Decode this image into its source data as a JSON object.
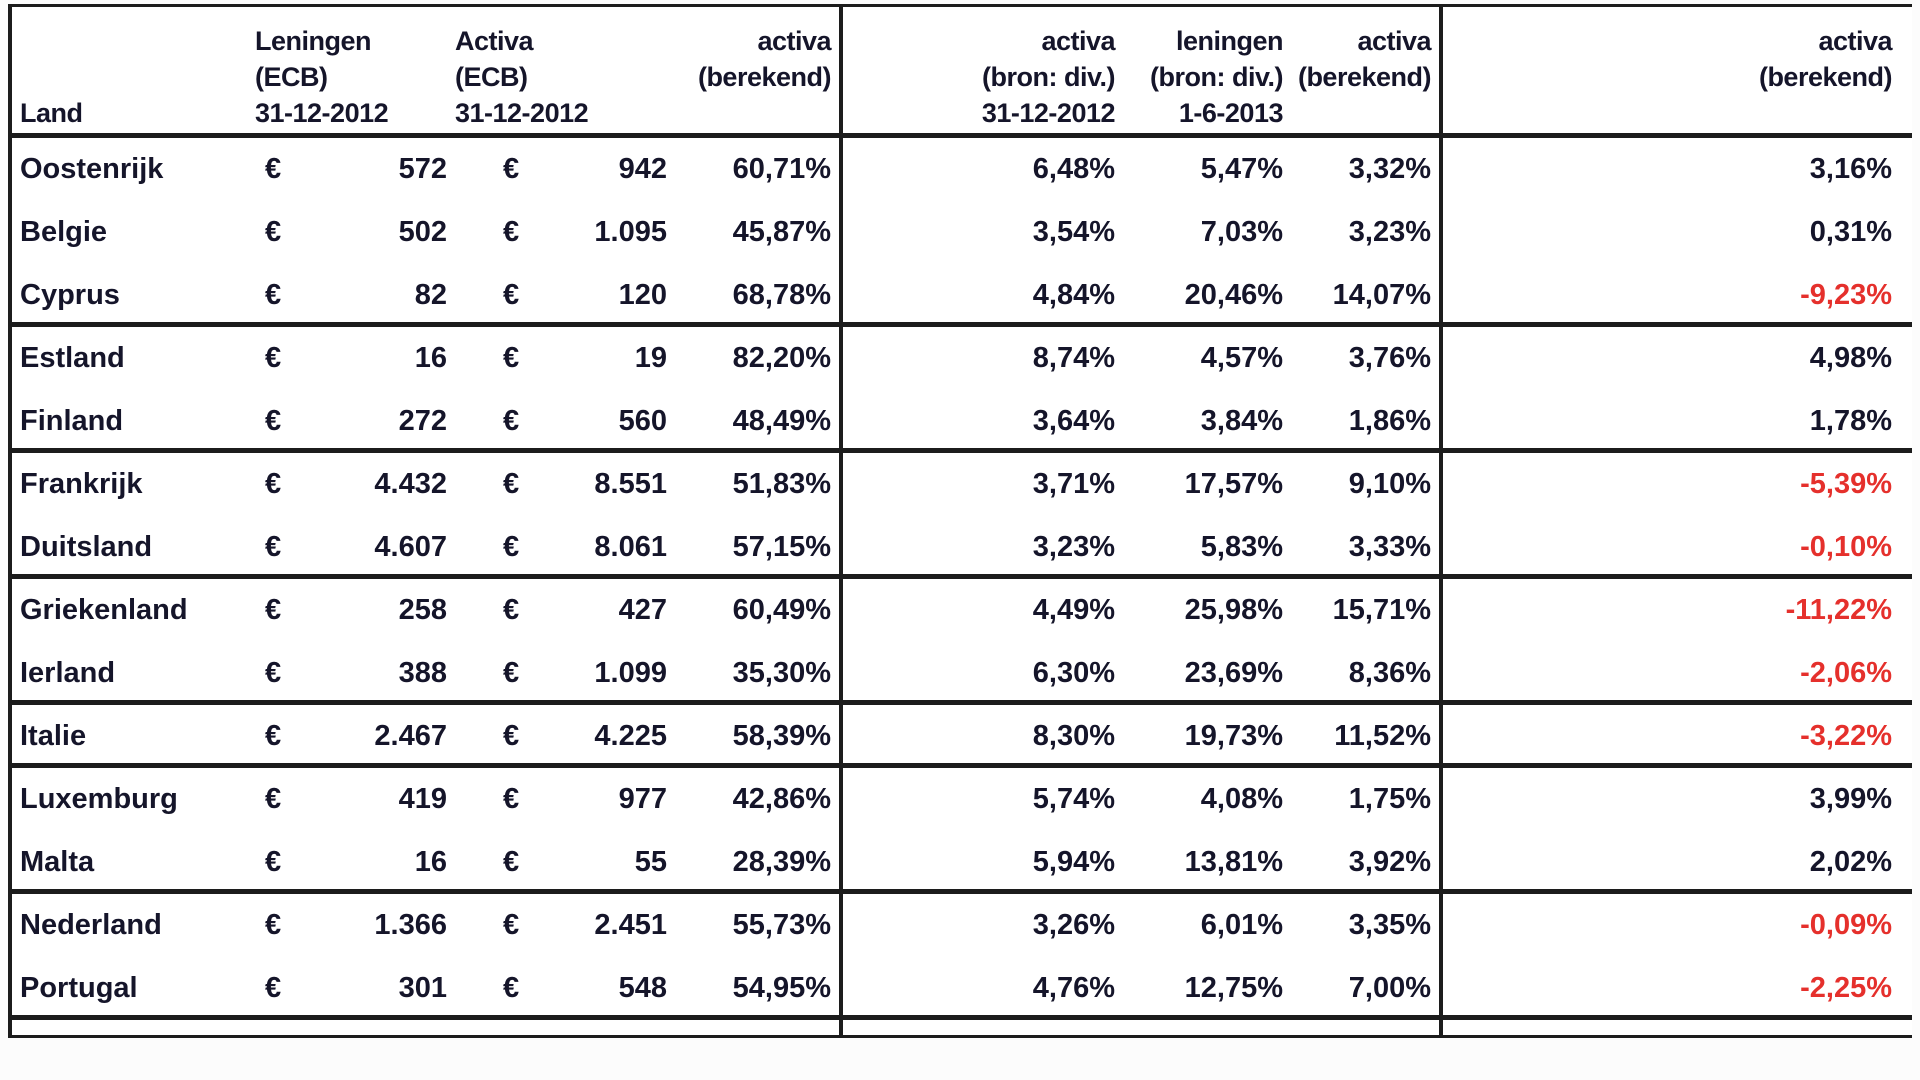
{
  "table": {
    "currency_symbol": "€",
    "colors": {
      "text": "#15152a",
      "negative_value": "#e5302c",
      "border": "#1c1c1c"
    },
    "headers": [
      {
        "lines": [
          "",
          "",
          "Land"
        ]
      },
      {
        "lines": [
          "Leningen",
          "(ECB)",
          "31-12-2012"
        ]
      },
      {
        "lines": [
          "Activa",
          "(ECB)",
          "31-12-2012"
        ]
      },
      {
        "lines": [
          "activa",
          "(berekend)",
          ""
        ]
      },
      {
        "lines": [
          "activa",
          "(bron: div.)",
          "31-12-2012"
        ]
      },
      {
        "lines": [
          "leningen",
          "(bron: div.)",
          "1-6-2013"
        ]
      },
      {
        "lines": [
          "activa",
          "(berekend)",
          ""
        ]
      },
      {
        "lines": [
          "activa",
          "(berekend)",
          ""
        ]
      }
    ],
    "rows": [
      {
        "land": "Oostenrijk",
        "leningen_ecb": "572",
        "activa_ecb": "942",
        "activa_berekend": "60,71%",
        "activa_bron_div": "6,48%",
        "leningen_bron_div": "5,47%",
        "activa_berekend_2": "3,32%",
        "activa_berekend_3": "3,16%",
        "negative": false,
        "group_end": false
      },
      {
        "land": "Belgie",
        "leningen_ecb": "502",
        "activa_ecb": "1.095",
        "activa_berekend": "45,87%",
        "activa_bron_div": "3,54%",
        "leningen_bron_div": "7,03%",
        "activa_berekend_2": "3,23%",
        "activa_berekend_3": "0,31%",
        "negative": false,
        "group_end": false
      },
      {
        "land": "Cyprus",
        "leningen_ecb": "82",
        "activa_ecb": "120",
        "activa_berekend": "68,78%",
        "activa_bron_div": "4,84%",
        "leningen_bron_div": "20,46%",
        "activa_berekend_2": "14,07%",
        "activa_berekend_3": "-9,23%",
        "negative": true,
        "group_end": true
      },
      {
        "land": "Estland",
        "leningen_ecb": "16",
        "activa_ecb": "19",
        "activa_berekend": "82,20%",
        "activa_bron_div": "8,74%",
        "leningen_bron_div": "4,57%",
        "activa_berekend_2": "3,76%",
        "activa_berekend_3": "4,98%",
        "negative": false,
        "group_end": false
      },
      {
        "land": "Finland",
        "leningen_ecb": "272",
        "activa_ecb": "560",
        "activa_berekend": "48,49%",
        "activa_bron_div": "3,64%",
        "leningen_bron_div": "3,84%",
        "activa_berekend_2": "1,86%",
        "activa_berekend_3": "1,78%",
        "negative": false,
        "group_end": true
      },
      {
        "land": "Frankrijk",
        "leningen_ecb": "4.432",
        "activa_ecb": "8.551",
        "activa_berekend": "51,83%",
        "activa_bron_div": "3,71%",
        "leningen_bron_div": "17,57%",
        "activa_berekend_2": "9,10%",
        "activa_berekend_3": "-5,39%",
        "negative": true,
        "group_end": false
      },
      {
        "land": "Duitsland",
        "leningen_ecb": "4.607",
        "activa_ecb": "8.061",
        "activa_berekend": "57,15%",
        "activa_bron_div": "3,23%",
        "leningen_bron_div": "5,83%",
        "activa_berekend_2": "3,33%",
        "activa_berekend_3": "-0,10%",
        "negative": true,
        "group_end": true
      },
      {
        "land": "Griekenland",
        "leningen_ecb": "258",
        "activa_ecb": "427",
        "activa_berekend": "60,49%",
        "activa_bron_div": "4,49%",
        "leningen_bron_div": "25,98%",
        "activa_berekend_2": "15,71%",
        "activa_berekend_3": "-11,22%",
        "negative": true,
        "group_end": false
      },
      {
        "land": "Ierland",
        "leningen_ecb": "388",
        "activa_ecb": "1.099",
        "activa_berekend": "35,30%",
        "activa_bron_div": "6,30%",
        "leningen_bron_div": "23,69%",
        "activa_berekend_2": "8,36%",
        "activa_berekend_3": "-2,06%",
        "negative": true,
        "group_end": true
      },
      {
        "land": "Italie",
        "leningen_ecb": "2.467",
        "activa_ecb": "4.225",
        "activa_berekend": "58,39%",
        "activa_bron_div": "8,30%",
        "leningen_bron_div": "19,73%",
        "activa_berekend_2": "11,52%",
        "activa_berekend_3": "-3,22%",
        "negative": true,
        "group_end": true
      },
      {
        "land": "Luxemburg",
        "leningen_ecb": "419",
        "activa_ecb": "977",
        "activa_berekend": "42,86%",
        "activa_bron_div": "5,74%",
        "leningen_bron_div": "4,08%",
        "activa_berekend_2": "1,75%",
        "activa_berekend_3": "3,99%",
        "negative": false,
        "group_end": false
      },
      {
        "land": "Malta",
        "leningen_ecb": "16",
        "activa_ecb": "55",
        "activa_berekend": "28,39%",
        "activa_bron_div": "5,94%",
        "leningen_bron_div": "13,81%",
        "activa_berekend_2": "3,92%",
        "activa_berekend_3": "2,02%",
        "negative": false,
        "group_end": true
      },
      {
        "land": "Nederland",
        "leningen_ecb": "1.366",
        "activa_ecb": "2.451",
        "activa_berekend": "55,73%",
        "activa_bron_div": "3,26%",
        "leningen_bron_div": "6,01%",
        "activa_berekend_2": "3,35%",
        "activa_berekend_3": "-0,09%",
        "negative": true,
        "group_end": false
      },
      {
        "land": "Portugal",
        "leningen_ecb": "301",
        "activa_ecb": "548",
        "activa_berekend": "54,95%",
        "activa_bron_div": "4,76%",
        "leningen_bron_div": "12,75%",
        "activa_berekend_2": "7,00%",
        "activa_berekend_3": "-2,25%",
        "negative": true,
        "group_end": true
      }
    ]
  }
}
